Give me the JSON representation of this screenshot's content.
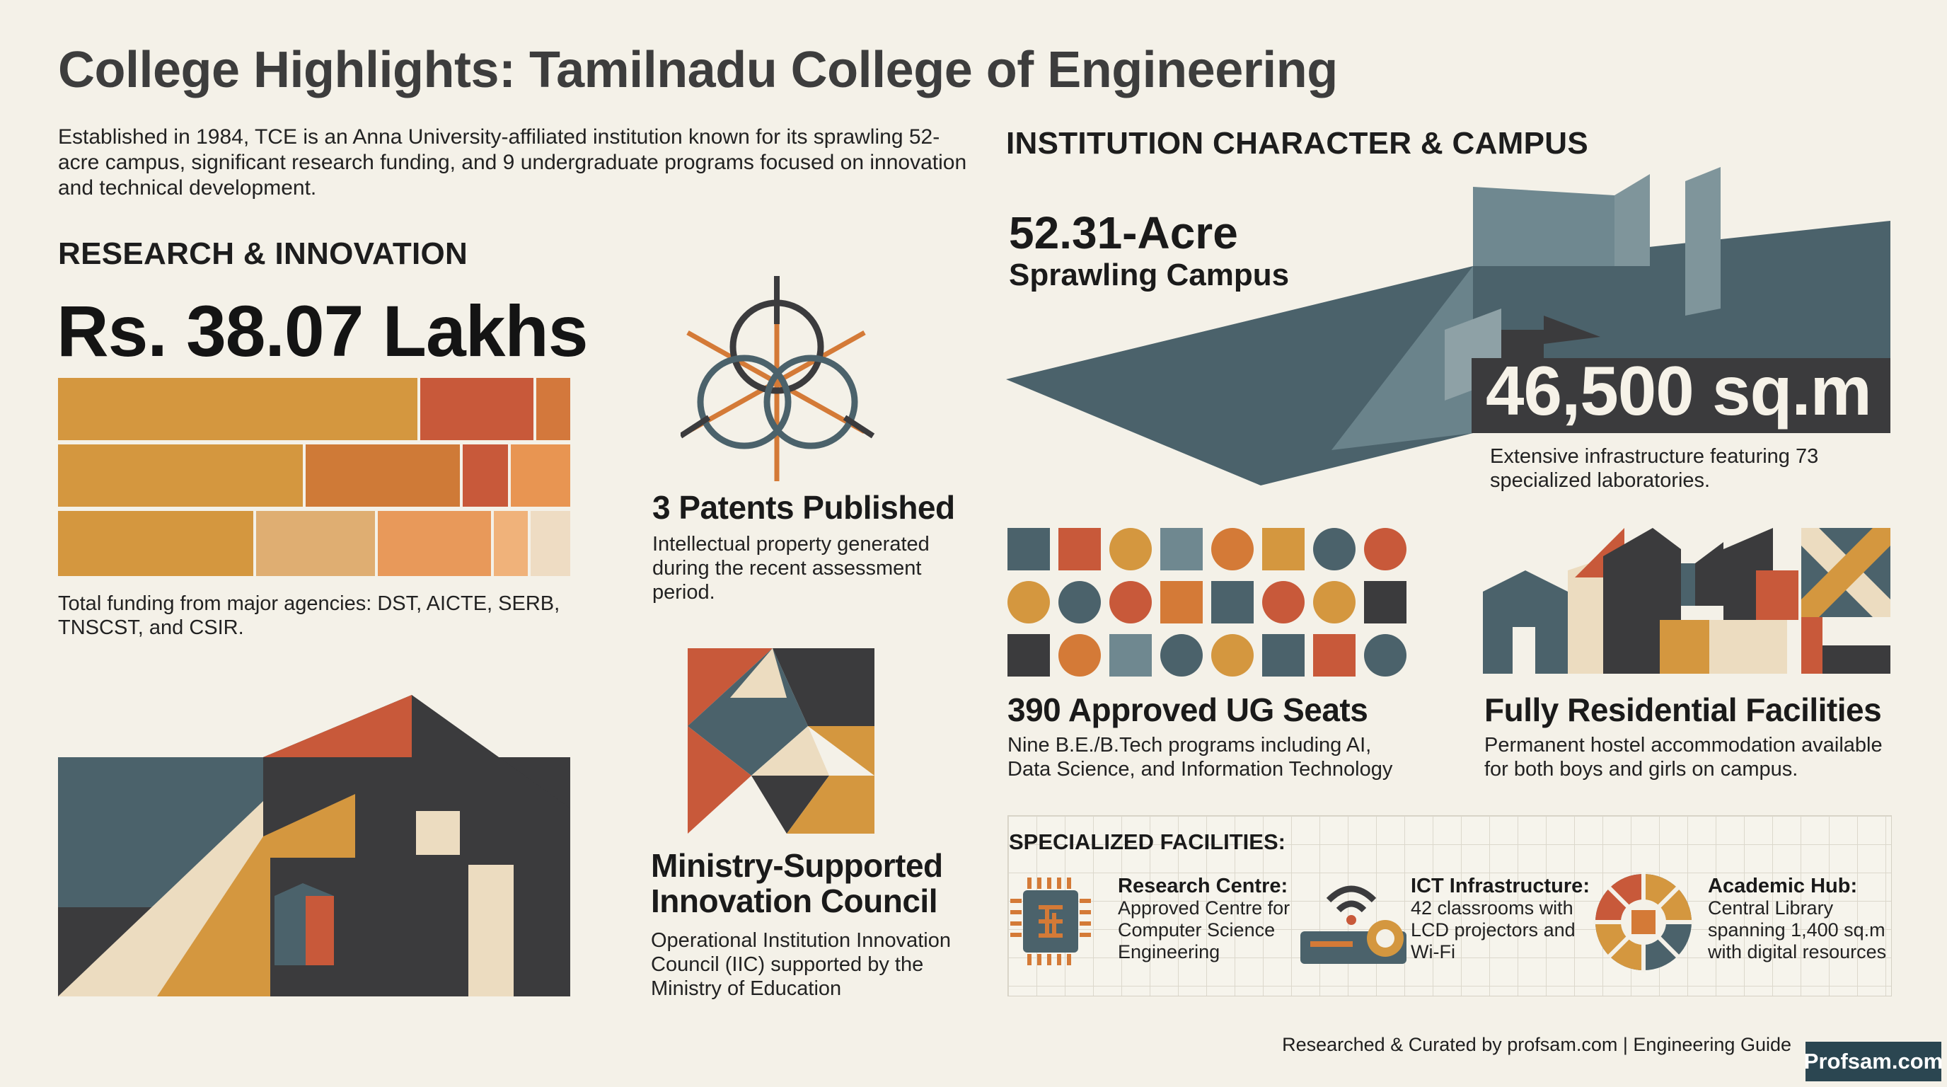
{
  "header": {
    "title": "College Highlights: Tamilnadu College of Engineering",
    "intro": "Established in 1984, TCE is an Anna University-affiliated institution known for its sprawling 52-acre campus, significant research funding, and 9 undergraduate programs focused on innovation and technical development."
  },
  "research": {
    "heading": "RESEARCH & INNOVATION",
    "funding_amount": "Rs. 38.07 Lakhs",
    "funding_caption": "Total funding from major agencies: DST, AICTE, SERB, TNSCST, and CSIR.",
    "patents_title": "3 Patents Published",
    "patents_text": "Intellectual property generated during the recent assessment period.",
    "iic_title": "Ministry-Supported Innovation Council",
    "iic_text": "Operational Institution Innovation Council (IIC) supported by the Ministry of Education"
  },
  "campus": {
    "heading": "INSTITUTION CHARACTER & CAMPUS",
    "acre_value": "52.31-Acre",
    "acre_label": "Sprawling Campus",
    "area_value": "46,500 sq.m",
    "area_text": "Extensive infrastructure featuring 73 specialized laboratories.",
    "seats_title": "390 Approved UG Seats",
    "seats_text": "Nine B.E./B.Tech programs including AI, Data Science, and Information Technology",
    "residential_title": "Fully Residential Facilities",
    "residential_text": "Permanent hostel accommodation available for both boys and girls on campus."
  },
  "facilities": {
    "heading": "SPECIALIZED FACILITIES:",
    "items": [
      {
        "title": "Research Centre:",
        "text": "Approved Centre for Computer Science Engineering",
        "icon": "chip-icon"
      },
      {
        "title": "ICT Infrastructure:",
        "text": "42 classrooms with LCD projectors and Wi-Fi",
        "icon": "projector-wifi-icon"
      },
      {
        "title": "Academic Hub:",
        "text": "Central Library spanning 1,400 sq.m with digital resources",
        "icon": "library-hub-icon"
      }
    ]
  },
  "footer": {
    "credit": "Researched & Curated by profsam.com | Engineering Guide",
    "logo": "Profsam.com"
  },
  "colors": {
    "background": "#f4f1e8",
    "slate": "#4b626b",
    "rust": "#c8593a",
    "ochre": "#d49a3f",
    "orange": "#e2874a",
    "cream": "#ecdcc0",
    "charcoal": "#3b3b3d"
  }
}
